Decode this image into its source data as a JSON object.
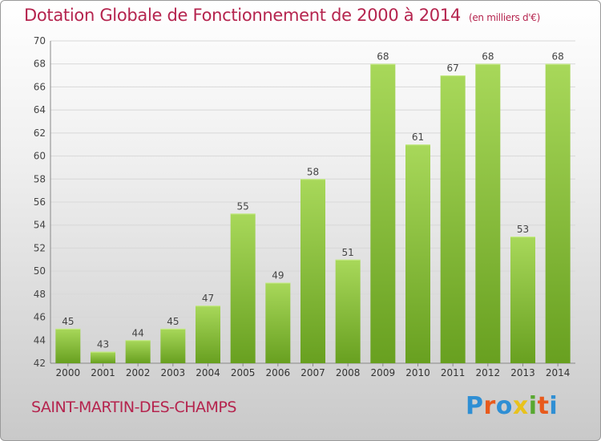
{
  "title": "Dotation Globale de Fonctionnement de 2000 à 2014",
  "subtitle": "(en milliers d'€)",
  "commune": "SAINT-MARTIN-DES-CHAMPS",
  "logo": {
    "text": "Proxiti",
    "letters": [
      "P",
      "r",
      "o",
      "x",
      "i",
      "t",
      "i"
    ],
    "colors": [
      "#2f8fd4",
      "#e85a1c",
      "#2f8fd4",
      "#e8c21c",
      "#58a830",
      "#e85a1c",
      "#2f8fd4"
    ]
  },
  "colors": {
    "bar_light": "#a8d85a",
    "bar_dark": "#68a020",
    "title": "#b5244e",
    "grid": "#d8d8d8"
  },
  "chart_data": {
    "type": "bar",
    "categories": [
      "2000",
      "2001",
      "2002",
      "2003",
      "2004",
      "2005",
      "2006",
      "2007",
      "2008",
      "2009",
      "2010",
      "2011",
      "2012",
      "2013",
      "2014"
    ],
    "values": [
      45,
      43,
      44,
      45,
      47,
      55,
      49,
      58,
      51,
      68,
      61,
      67,
      68,
      53,
      68
    ],
    "ylim": [
      42,
      70
    ],
    "yticks": [
      42,
      44,
      46,
      48,
      50,
      52,
      54,
      56,
      58,
      60,
      62,
      64,
      66,
      68,
      70
    ],
    "grid": true,
    "legend": "none"
  }
}
